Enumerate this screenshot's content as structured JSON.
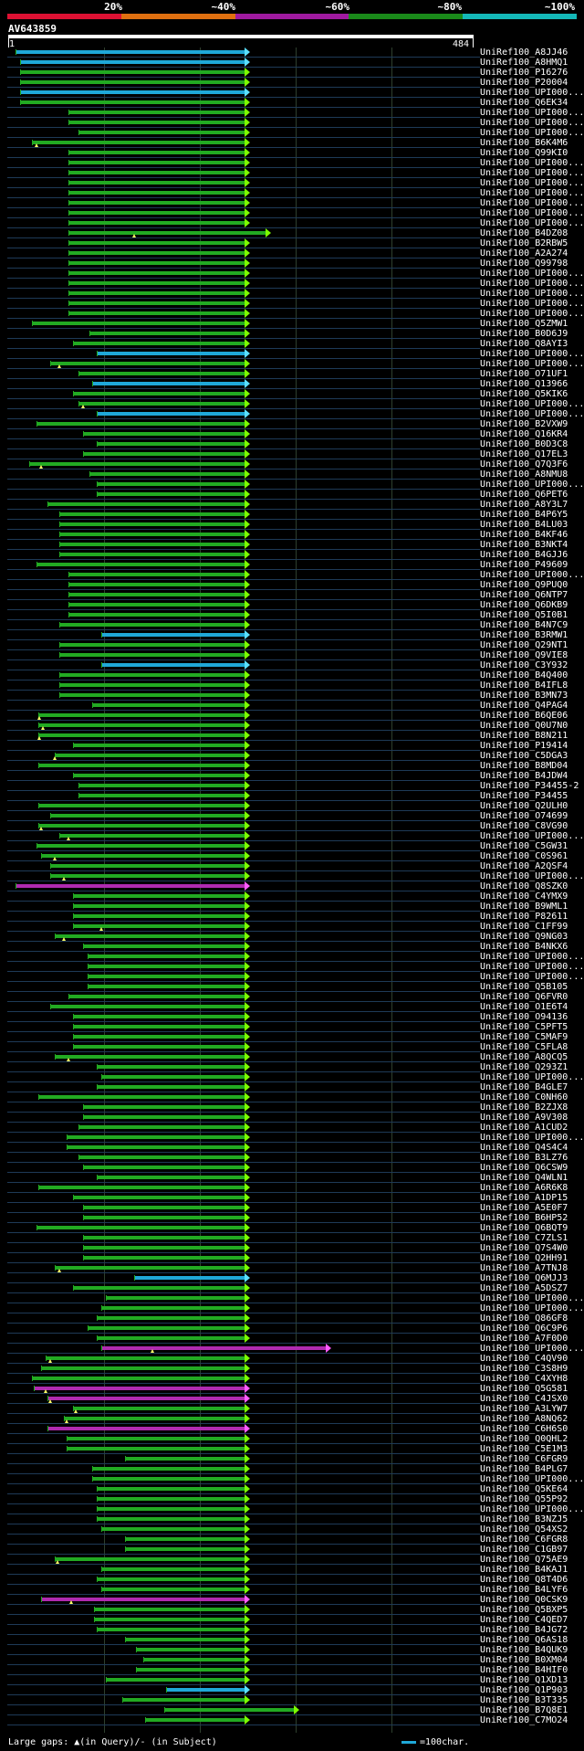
{
  "header": {
    "percent_labels": [
      "20%",
      "~40%",
      "~60%",
      "~80%",
      "~100%"
    ],
    "scale_colors": [
      "#dd1133",
      "#e07010",
      "#a01aa0",
      "#1a8a1a",
      "#14b8b8"
    ]
  },
  "query": {
    "name": "AV643859",
    "start": "1",
    "end": "484"
  },
  "colors": {
    "hit": "#22aa22",
    "hit_frame": "#1fa8d8",
    "hit_magenta": "#b02ab0",
    "arrow": "#7cfc00"
  },
  "footer": {
    "gaps_text": "Large gaps: ▲(in Query)/- (in Subject)",
    "legend": "=100char."
  },
  "hits": [
    {
      "label": "UniRef100_A8JJ46",
      "s": 0.015,
      "e": 0.51,
      "c": "fr"
    },
    {
      "label": "UniRef100_A8HMQ1",
      "s": 0.025,
      "e": 0.51,
      "c": "fr"
    },
    {
      "label": "UniRef100_P16276",
      "s": 0.025,
      "e": 0.51
    },
    {
      "label": "UniRef100_P20004",
      "s": 0.025,
      "e": 0.51
    },
    {
      "label": "UniRef100_UPI000...",
      "s": 0.025,
      "e": 0.51,
      "c": "fr"
    },
    {
      "label": "UniRef100_Q6EK34",
      "s": 0.025,
      "e": 0.51
    },
    {
      "label": "UniRef100_UPI000...",
      "s": 0.13,
      "e": 0.51
    },
    {
      "label": "UniRef100_UPI000...",
      "s": 0.13,
      "e": 0.51
    },
    {
      "label": "UniRef100_UPI000...",
      "s": 0.15,
      "e": 0.51
    },
    {
      "label": "UniRef100_B6K4M6",
      "s": 0.05,
      "e": 0.51,
      "g": 0.06
    },
    {
      "label": "UniRef100_Q99KI0",
      "s": 0.13,
      "e": 0.51
    },
    {
      "label": "UniRef100_UPI000...",
      "s": 0.13,
      "e": 0.51
    },
    {
      "label": "UniRef100_UPI000...",
      "s": 0.13,
      "e": 0.51
    },
    {
      "label": "UniRef100_UPI000...",
      "s": 0.13,
      "e": 0.51
    },
    {
      "label": "UniRef100_UPI000...",
      "s": 0.13,
      "e": 0.51
    },
    {
      "label": "UniRef100_UPI000...",
      "s": 0.13,
      "e": 0.51
    },
    {
      "label": "UniRef100_UPI000...",
      "s": 0.13,
      "e": 0.51
    },
    {
      "label": "UniRef100_UPI000...",
      "s": 0.13,
      "e": 0.51
    },
    {
      "label": "UniRef100_B4DZ08",
      "s": 0.13,
      "e": 0.555,
      "g": 0.27
    },
    {
      "label": "UniRef100_B2RBW5",
      "s": 0.13,
      "e": 0.51
    },
    {
      "label": "UniRef100_A2A274",
      "s": 0.13,
      "e": 0.51
    },
    {
      "label": "UniRef100_Q99798",
      "s": 0.13,
      "e": 0.51
    },
    {
      "label": "UniRef100_UPI000...",
      "s": 0.13,
      "e": 0.51
    },
    {
      "label": "UniRef100_UPI000...",
      "s": 0.13,
      "e": 0.51
    },
    {
      "label": "UniRef100_UPI000...",
      "s": 0.13,
      "e": 0.51
    },
    {
      "label": "UniRef100_UPI000...",
      "s": 0.13,
      "e": 0.51
    },
    {
      "label": "UniRef100_UPI000...",
      "s": 0.13,
      "e": 0.51
    },
    {
      "label": "UniRef100_Q5ZMW1",
      "s": 0.05,
      "e": 0.51
    },
    {
      "label": "UniRef100_B0D6J9",
      "s": 0.175,
      "e": 0.51
    },
    {
      "label": "UniRef100_Q8AYI3",
      "s": 0.14,
      "e": 0.51
    },
    {
      "label": "UniRef100_UPI000...",
      "s": 0.19,
      "e": 0.51,
      "c": "fr"
    },
    {
      "label": "UniRef100_UPI000...",
      "s": 0.09,
      "e": 0.51,
      "g": 0.11
    },
    {
      "label": "UniRef100_O71UF1",
      "s": 0.15,
      "e": 0.51
    },
    {
      "label": "UniRef100_Q13966",
      "s": 0.18,
      "e": 0.51,
      "c": "fr"
    },
    {
      "label": "UniRef100_Q5KIK6",
      "s": 0.14,
      "e": 0.51
    },
    {
      "label": "UniRef100_UPI000...",
      "s": 0.15,
      "e": 0.51,
      "g": 0.16
    },
    {
      "label": "UniRef100_UPI000...",
      "s": 0.19,
      "e": 0.51,
      "c": "fr"
    },
    {
      "label": "UniRef100_B2VXW9",
      "s": 0.06,
      "e": 0.51
    },
    {
      "label": "UniRef100_Q16KR4",
      "s": 0.16,
      "e": 0.51
    },
    {
      "label": "UniRef100_B0D3C8",
      "s": 0.19,
      "e": 0.51
    },
    {
      "label": "UniRef100_Q17EL3",
      "s": 0.16,
      "e": 0.51
    },
    {
      "label": "UniRef100_Q7Q3F6",
      "s": 0.045,
      "e": 0.51,
      "g": 0.07
    },
    {
      "label": "UniRef100_A8NMU8",
      "s": 0.175,
      "e": 0.51
    },
    {
      "label": "UniRef100_UPI000...",
      "s": 0.19,
      "e": 0.51
    },
    {
      "label": "UniRef100_Q6PET6",
      "s": 0.19,
      "e": 0.51
    },
    {
      "label": "UniRef100_A8Y3L7",
      "s": 0.085,
      "e": 0.51
    },
    {
      "label": "UniRef100_B4P6Y5",
      "s": 0.11,
      "e": 0.51
    },
    {
      "label": "UniRef100_B4LU03",
      "s": 0.11,
      "e": 0.51
    },
    {
      "label": "UniRef100_B4KF46",
      "s": 0.11,
      "e": 0.51
    },
    {
      "label": "UniRef100_B3NKT4",
      "s": 0.11,
      "e": 0.51
    },
    {
      "label": "UniRef100_B4GJJ6",
      "s": 0.11,
      "e": 0.51
    },
    {
      "label": "UniRef100_P49609",
      "s": 0.06,
      "e": 0.51
    },
    {
      "label": "UniRef100_UPI000...",
      "s": 0.13,
      "e": 0.51
    },
    {
      "label": "UniRef100_Q9PUQ0",
      "s": 0.13,
      "e": 0.51
    },
    {
      "label": "UniRef100_Q6NTP7",
      "s": 0.13,
      "e": 0.51
    },
    {
      "label": "UniRef100_Q6DKB9",
      "s": 0.13,
      "e": 0.51
    },
    {
      "label": "UniRef100_Q5I0B1",
      "s": 0.13,
      "e": 0.51
    },
    {
      "label": "UniRef100_B4N7C9",
      "s": 0.11,
      "e": 0.51
    },
    {
      "label": "UniRef100_B3RMW1",
      "s": 0.2,
      "e": 0.51,
      "c": "fr"
    },
    {
      "label": "UniRef100_Q29NT1",
      "s": 0.11,
      "e": 0.51
    },
    {
      "label": "UniRef100_Q9VIE8",
      "s": 0.11,
      "e": 0.51
    },
    {
      "label": "UniRef100_C3Y932",
      "s": 0.2,
      "e": 0.51,
      "c": "fr"
    },
    {
      "label": "UniRef100_B4Q400",
      "s": 0.11,
      "e": 0.51
    },
    {
      "label": "UniRef100_B4IFL8",
      "s": 0.11,
      "e": 0.51
    },
    {
      "label": "UniRef100_B3MN73",
      "s": 0.11,
      "e": 0.51
    },
    {
      "label": "UniRef100_Q4PAG4",
      "s": 0.18,
      "e": 0.51
    },
    {
      "label": "UniRef100_B6QE06",
      "s": 0.065,
      "e": 0.51,
      "g": 0.066
    },
    {
      "label": "UniRef100_Q0U7N0",
      "s": 0.065,
      "e": 0.51,
      "g": 0.075
    },
    {
      "label": "UniRef100_B8N211",
      "s": 0.065,
      "e": 0.51,
      "g": 0.066
    },
    {
      "label": "UniRef100_P19414",
      "s": 0.14,
      "e": 0.51
    },
    {
      "label": "UniRef100_C5DGA3",
      "s": 0.1,
      "e": 0.51,
      "g": 0.1
    },
    {
      "label": "UniRef100_B8MD04",
      "s": 0.065,
      "e": 0.51
    },
    {
      "label": "UniRef100_B4JDW4",
      "s": 0.14,
      "e": 0.51
    },
    {
      "label": "UniRef100_P34455-2",
      "s": 0.15,
      "e": 0.51
    },
    {
      "label": "UniRef100_P34455",
      "s": 0.15,
      "e": 0.51
    },
    {
      "label": "UniRef100_Q2ULH0",
      "s": 0.065,
      "e": 0.51
    },
    {
      "label": "UniRef100_O74699",
      "s": 0.09,
      "e": 0.51
    },
    {
      "label": "UniRef100_C8VG90",
      "s": 0.065,
      "e": 0.51,
      "g": 0.07
    },
    {
      "label": "UniRef100_UPI000...",
      "s": 0.11,
      "e": 0.51,
      "g": 0.13
    },
    {
      "label": "UniRef100_C5GW31",
      "s": 0.06,
      "e": 0.51
    },
    {
      "label": "UniRef100_C0S961",
      "s": 0.07,
      "e": 0.51,
      "g": 0.1
    },
    {
      "label": "UniRef100_A2QSF4",
      "s": 0.09,
      "e": 0.51
    },
    {
      "label": "UniRef100_UPI000...",
      "s": 0.09,
      "e": 0.51,
      "g": 0.12
    },
    {
      "label": "UniRef100_Q8SZK0",
      "s": 0.015,
      "e": 0.51,
      "c": "mg"
    },
    {
      "label": "UniRef100_C4YMX9",
      "s": 0.14,
      "e": 0.51
    },
    {
      "label": "UniRef100_B9WML1",
      "s": 0.14,
      "e": 0.51
    },
    {
      "label": "UniRef100_P82611",
      "s": 0.14,
      "e": 0.51
    },
    {
      "label": "UniRef100_C1FF99",
      "s": 0.14,
      "e": 0.51,
      "g": 0.2
    },
    {
      "label": "UniRef100_Q9NG03",
      "s": 0.1,
      "e": 0.51,
      "g": 0.12
    },
    {
      "label": "UniRef100_B4NKX6",
      "s": 0.16,
      "e": 0.51
    },
    {
      "label": "UniRef100_UPI000...",
      "s": 0.17,
      "e": 0.51
    },
    {
      "label": "UniRef100_UPI000...",
      "s": 0.17,
      "e": 0.51
    },
    {
      "label": "UniRef100_UPI000...",
      "s": 0.17,
      "e": 0.51
    },
    {
      "label": "UniRef100_Q5B105",
      "s": 0.17,
      "e": 0.51
    },
    {
      "label": "UniRef100_Q6FVR0",
      "s": 0.13,
      "e": 0.51
    },
    {
      "label": "UniRef100_O1E6T4",
      "s": 0.09,
      "e": 0.51
    },
    {
      "label": "UniRef100_O94136",
      "s": 0.14,
      "e": 0.51
    },
    {
      "label": "UniRef100_C5PFT5",
      "s": 0.14,
      "e": 0.51
    },
    {
      "label": "UniRef100_C5MAF9",
      "s": 0.14,
      "e": 0.51
    },
    {
      "label": "UniRef100_C5FLA8",
      "s": 0.14,
      "e": 0.51
    },
    {
      "label": "UniRef100_A8QCQ5",
      "s": 0.1,
      "e": 0.51,
      "g": 0.13
    },
    {
      "label": "UniRef100_Q293Z1",
      "s": 0.19,
      "e": 0.51
    },
    {
      "label": "UniRef100_UPI000...",
      "s": 0.2,
      "e": 0.51
    },
    {
      "label": "UniRef100_B4GLE7",
      "s": 0.19,
      "e": 0.51
    },
    {
      "label": "UniRef100_C0NH60",
      "s": 0.065,
      "e": 0.51
    },
    {
      "label": "UniRef100_B2ZJX8",
      "s": 0.16,
      "e": 0.51
    },
    {
      "label": "UniRef100_A9V308",
      "s": 0.16,
      "e": 0.51
    },
    {
      "label": "UniRef100_A1CUD2",
      "s": 0.15,
      "e": 0.51
    },
    {
      "label": "UniRef100_UPI000...",
      "s": 0.125,
      "e": 0.51
    },
    {
      "label": "UniRef100_Q4S4C4",
      "s": 0.125,
      "e": 0.51
    },
    {
      "label": "UniRef100_B3LZ76",
      "s": 0.15,
      "e": 0.51
    },
    {
      "label": "UniRef100_Q6CSW9",
      "s": 0.16,
      "e": 0.51
    },
    {
      "label": "UniRef100_Q4WLN1",
      "s": 0.19,
      "e": 0.51
    },
    {
      "label": "UniRef100_A6R6K8",
      "s": 0.065,
      "e": 0.51
    },
    {
      "label": "UniRef100_A1DP15",
      "s": 0.14,
      "e": 0.51
    },
    {
      "label": "UniRef100_A5E0F7",
      "s": 0.16,
      "e": 0.51
    },
    {
      "label": "UniRef100_B6HP52",
      "s": 0.16,
      "e": 0.51
    },
    {
      "label": "UniRef100_Q6BQT9",
      "s": 0.06,
      "e": 0.51
    },
    {
      "label": "UniRef100_C7ZLS1",
      "s": 0.16,
      "e": 0.51
    },
    {
      "label": "UniRef100_Q7S4W0",
      "s": 0.16,
      "e": 0.51
    },
    {
      "label": "UniRef100_Q2HH91",
      "s": 0.16,
      "e": 0.51
    },
    {
      "label": "UniRef100_A7TNJ8",
      "s": 0.1,
      "e": 0.51,
      "g": 0.11
    },
    {
      "label": "UniRef100_Q6MJJ3",
      "s": 0.27,
      "e": 0.51,
      "c": "fr"
    },
    {
      "label": "UniRef100_A5DSZ7",
      "s": 0.14,
      "e": 0.51
    },
    {
      "label": "UniRef100_UPI000...",
      "s": 0.21,
      "e": 0.51
    },
    {
      "label": "UniRef100_UPI000...",
      "s": 0.2,
      "e": 0.51
    },
    {
      "label": "UniRef100_Q86GF8",
      "s": 0.19,
      "e": 0.51
    },
    {
      "label": "UniRef100_Q6C9P6",
      "s": 0.17,
      "e": 0.51
    },
    {
      "label": "UniRef100_A7F0D0",
      "s": 0.19,
      "e": 0.51
    },
    {
      "label": "UniRef100_UPI000...",
      "s": 0.2,
      "e": 0.685,
      "c": "mg",
      "g": 0.31
    },
    {
      "label": "UniRef100_C4QV90",
      "s": 0.08,
      "e": 0.51,
      "g": 0.09
    },
    {
      "label": "UniRef100_C3S8H9",
      "s": 0.07,
      "e": 0.51
    },
    {
      "label": "UniRef100_C4XYH8",
      "s": 0.05,
      "e": 0.51
    },
    {
      "label": "UniRef100_Q5G581",
      "s": 0.055,
      "e": 0.51,
      "c": "mg",
      "g": 0.08
    },
    {
      "label": "UniRef100_C4JSX0",
      "s": 0.085,
      "e": 0.51,
      "c": "mg",
      "g": 0.09
    },
    {
      "label": "UniRef100_A3LYW7",
      "s": 0.14,
      "e": 0.51,
      "g": 0.145
    },
    {
      "label": "UniRef100_A8NQ62",
      "s": 0.12,
      "e": 0.51,
      "g": 0.125
    },
    {
      "label": "UniRef100_C6H6S0",
      "s": 0.085,
      "e": 0.51,
      "c": "mg"
    },
    {
      "label": "UniRef100_Q0QHL2",
      "s": 0.125,
      "e": 0.51
    },
    {
      "label": "UniRef100_C5E1M3",
      "s": 0.125,
      "e": 0.51
    },
    {
      "label": "UniRef100_C6FGR9",
      "s": 0.25,
      "e": 0.51
    },
    {
      "label": "UniRef100_B4PLG7",
      "s": 0.18,
      "e": 0.51
    },
    {
      "label": "UniRef100_UPI000...",
      "s": 0.18,
      "e": 0.51
    },
    {
      "label": "UniRef100_Q5KE64",
      "s": 0.19,
      "e": 0.51
    },
    {
      "label": "UniRef100_Q55P92",
      "s": 0.19,
      "e": 0.51
    },
    {
      "label": "UniRef100_UPI000...",
      "s": 0.19,
      "e": 0.51
    },
    {
      "label": "UniRef100_B3NZJ5",
      "s": 0.19,
      "e": 0.51
    },
    {
      "label": "UniRef100_Q54XS2",
      "s": 0.2,
      "e": 0.51
    },
    {
      "label": "UniRef100_C6FGR8",
      "s": 0.25,
      "e": 0.51
    },
    {
      "label": "UniRef100_C1GB97",
      "s": 0.25,
      "e": 0.51
    },
    {
      "label": "UniRef100_Q75AE9",
      "s": 0.1,
      "e": 0.51,
      "g": 0.105
    },
    {
      "label": "UniRef100_B4KAJ1",
      "s": 0.2,
      "e": 0.51
    },
    {
      "label": "UniRef100_Q8T4D6",
      "s": 0.19,
      "e": 0.51
    },
    {
      "label": "UniRef100_B4LYF6",
      "s": 0.2,
      "e": 0.51
    },
    {
      "label": "UniRef100_Q0CSK9",
      "s": 0.07,
      "e": 0.51,
      "c": "mg",
      "g": 0.135
    },
    {
      "label": "UniRef100_Q5BXP5",
      "s": 0.185,
      "e": 0.51
    },
    {
      "label": "UniRef100_C4QED7",
      "s": 0.185,
      "e": 0.51
    },
    {
      "label": "UniRef100_B4JG72",
      "s": 0.19,
      "e": 0.51
    },
    {
      "label": "UniRef100_Q6AS18",
      "s": 0.25,
      "e": 0.51
    },
    {
      "label": "UniRef100_B4QUK9",
      "s": 0.275,
      "e": 0.51
    },
    {
      "label": "UniRef100_B0XM04",
      "s": 0.29,
      "e": 0.51
    },
    {
      "label": "UniRef100_B4HIF0",
      "s": 0.275,
      "e": 0.51
    },
    {
      "label": "UniRef100_Q1XD13",
      "s": 0.21,
      "e": 0.51
    },
    {
      "label": "UniRef100_Q1P903",
      "s": 0.34,
      "e": 0.51,
      "c": "fr"
    },
    {
      "label": "UniRef100_B3T335",
      "s": 0.245,
      "e": 0.51
    },
    {
      "label": "UniRef100_B7Q8E1",
      "s": 0.335,
      "e": 0.615
    },
    {
      "label": "UniRef100_C7MO24",
      "s": 0.295,
      "e": 0.51
    }
  ]
}
